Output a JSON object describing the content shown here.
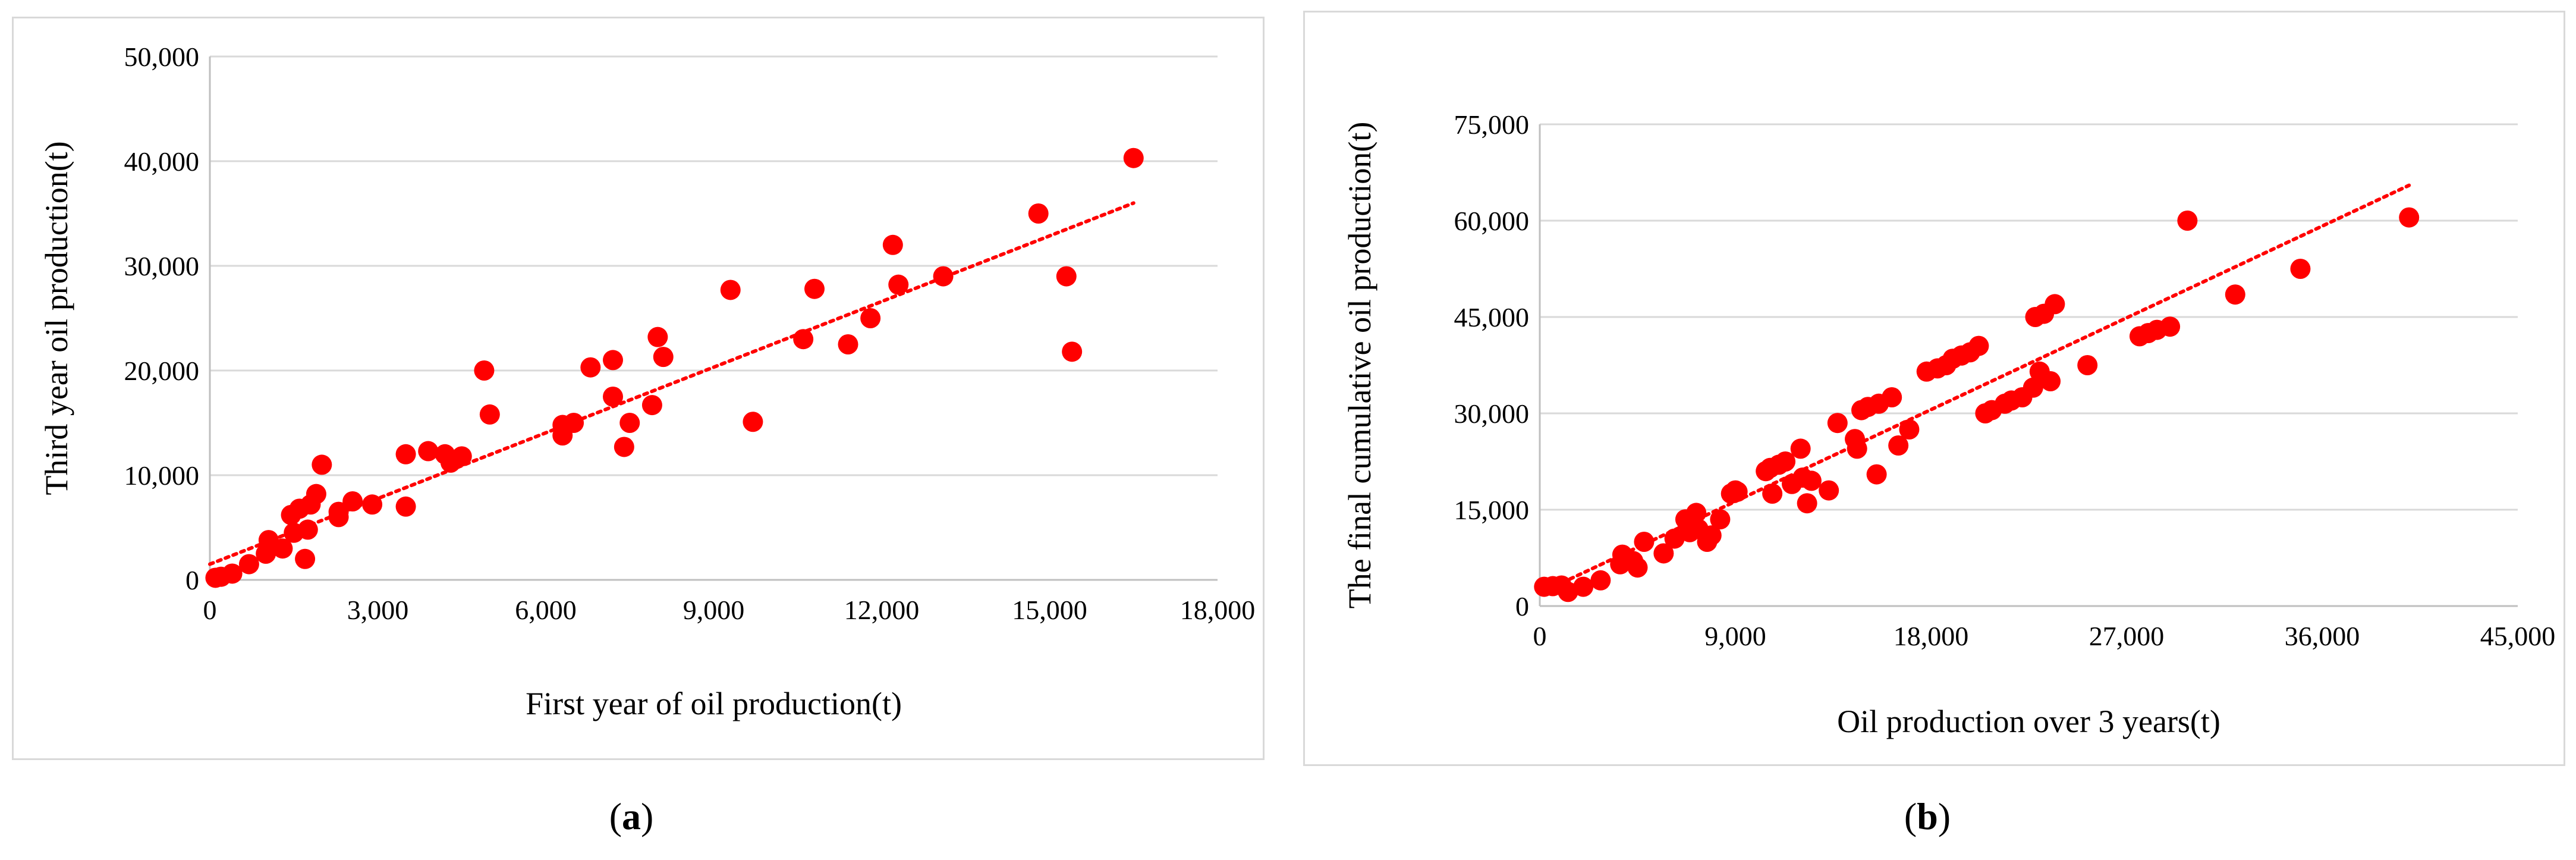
{
  "colors": {
    "marker": "#ff0000",
    "trend": "#ff0000",
    "grid": "#d9d9d9",
    "axis": "#bfbfbf"
  },
  "captions": {
    "a": "a",
    "b": "b"
  },
  "chart_data": [
    {
      "type": "scatter",
      "title": "",
      "xlabel": "First year of oil production(t)",
      "ylabel": "Third year oil production(t)",
      "xlim": [
        0,
        18000
      ],
      "ylim": [
        0,
        50000
      ],
      "xticks": [
        0,
        3000,
        6000,
        9000,
        12000,
        15000,
        18000
      ],
      "xtick_labels": [
        "0",
        "3,000",
        "6,000",
        "9,000",
        "12,000",
        "15,000",
        "18,000"
      ],
      "yticks": [
        0,
        10000,
        20000,
        30000,
        40000,
        50000
      ],
      "ytick_labels": [
        "0",
        "10,000",
        "20,000",
        "30,000",
        "40,000",
        "50,000"
      ],
      "grid": "horizontal",
      "trendline": {
        "type": "linear",
        "x": [
          0,
          16500
        ],
        "y": [
          1500,
          36000
        ]
      },
      "points": [
        [
          100,
          200
        ],
        [
          200,
          300
        ],
        [
          400,
          600
        ],
        [
          700,
          1500
        ],
        [
          1000,
          2500
        ],
        [
          1050,
          3800
        ],
        [
          1300,
          3000
        ],
        [
          1450,
          6200
        ],
        [
          1500,
          4500
        ],
        [
          1600,
          6800
        ],
        [
          1700,
          2000
        ],
        [
          1750,
          4800
        ],
        [
          1800,
          7200
        ],
        [
          1900,
          8200
        ],
        [
          2000,
          11000
        ],
        [
          2300,
          6500
        ],
        [
          2300,
          6000
        ],
        [
          2550,
          7500
        ],
        [
          2900,
          7200
        ],
        [
          3500,
          7000
        ],
        [
          3500,
          12000
        ],
        [
          3900,
          12300
        ],
        [
          4200,
          12000
        ],
        [
          4300,
          11200
        ],
        [
          4500,
          11800
        ],
        [
          4900,
          20000
        ],
        [
          5000,
          15800
        ],
        [
          6300,
          14800
        ],
        [
          6300,
          13800
        ],
        [
          6500,
          15000
        ],
        [
          6800,
          20300
        ],
        [
          7200,
          17500
        ],
        [
          7200,
          21000
        ],
        [
          7400,
          12700
        ],
        [
          7500,
          15000
        ],
        [
          7900,
          16700
        ],
        [
          8000,
          23200
        ],
        [
          8100,
          21300
        ],
        [
          9300,
          27700
        ],
        [
          9700,
          15100
        ],
        [
          10600,
          23000
        ],
        [
          10800,
          27800
        ],
        [
          11400,
          22500
        ],
        [
          11800,
          25000
        ],
        [
          12200,
          32000
        ],
        [
          12300,
          28200
        ],
        [
          13100,
          29000
        ],
        [
          14800,
          35000
        ],
        [
          15300,
          29000
        ],
        [
          15400,
          21800
        ],
        [
          16500,
          40300
        ]
      ]
    },
    {
      "type": "scatter",
      "title": "",
      "xlabel": "Oil production over 3 years(t)",
      "ylabel": "The final cumulative oil production(t)",
      "xlim": [
        0,
        45000
      ],
      "ylim": [
        0,
        75000
      ],
      "xticks": [
        0,
        9000,
        18000,
        27000,
        36000,
        45000
      ],
      "xtick_labels": [
        "0",
        "9,000",
        "18,000",
        "27,000",
        "36,000",
        "45,000"
      ],
      "yticks": [
        0,
        15000,
        30000,
        45000,
        60000,
        75000
      ],
      "ytick_labels": [
        "0",
        "15,000",
        "30,000",
        "45,000",
        "60,000",
        "75,000"
      ],
      "grid": "horizontal",
      "trendline": {
        "type": "linear",
        "x": [
          0,
          40000
        ],
        "y": [
          2000,
          65500
        ]
      },
      "points": [
        [
          200,
          3000
        ],
        [
          600,
          3100
        ],
        [
          1000,
          3200
        ],
        [
          1300,
          2200
        ],
        [
          2000,
          3000
        ],
        [
          2800,
          4000
        ],
        [
          3700,
          6500
        ],
        [
          3800,
          8000
        ],
        [
          4000,
          7500
        ],
        [
          4300,
          7000
        ],
        [
          4500,
          6000
        ],
        [
          4800,
          10000
        ],
        [
          5700,
          8200
        ],
        [
          6200,
          10500
        ],
        [
          6700,
          13500
        ],
        [
          6800,
          12800
        ],
        [
          6900,
          11500
        ],
        [
          7200,
          14500
        ],
        [
          7300,
          12000
        ],
        [
          7700,
          10000
        ],
        [
          7900,
          11000
        ],
        [
          8300,
          13500
        ],
        [
          8800,
          17500
        ],
        [
          9000,
          18000
        ],
        [
          9100,
          17800
        ],
        [
          10400,
          21000
        ],
        [
          10600,
          21500
        ],
        [
          10700,
          17500
        ],
        [
          11000,
          22000
        ],
        [
          11300,
          22500
        ],
        [
          11600,
          19000
        ],
        [
          12000,
          24500
        ],
        [
          12100,
          20000
        ],
        [
          12300,
          16000
        ],
        [
          12500,
          19500
        ],
        [
          13300,
          18000
        ],
        [
          13700,
          28500
        ],
        [
          14500,
          26000
        ],
        [
          14600,
          24500
        ],
        [
          14800,
          30500
        ],
        [
          15100,
          31000
        ],
        [
          15500,
          20500
        ],
        [
          15600,
          31500
        ],
        [
          16200,
          32500
        ],
        [
          16500,
          25000
        ],
        [
          17000,
          27500
        ],
        [
          17800,
          36500
        ],
        [
          18300,
          37000
        ],
        [
          18700,
          37500
        ],
        [
          19000,
          38500
        ],
        [
          19400,
          39000
        ],
        [
          19800,
          39500
        ],
        [
          20200,
          40500
        ],
        [
          20500,
          30000
        ],
        [
          20800,
          30500
        ],
        [
          21400,
          31500
        ],
        [
          21700,
          32000
        ],
        [
          22200,
          32500
        ],
        [
          22700,
          34000
        ],
        [
          22800,
          45000
        ],
        [
          23000,
          36500
        ],
        [
          23200,
          45500
        ],
        [
          23500,
          35000
        ],
        [
          23700,
          47000
        ],
        [
          25200,
          37500
        ],
        [
          27600,
          42000
        ],
        [
          28000,
          42500
        ],
        [
          28400,
          43000
        ],
        [
          29000,
          43500
        ],
        [
          29800,
          60000
        ],
        [
          32000,
          48500
        ],
        [
          35000,
          52500
        ],
        [
          40000,
          60500
        ]
      ]
    }
  ]
}
